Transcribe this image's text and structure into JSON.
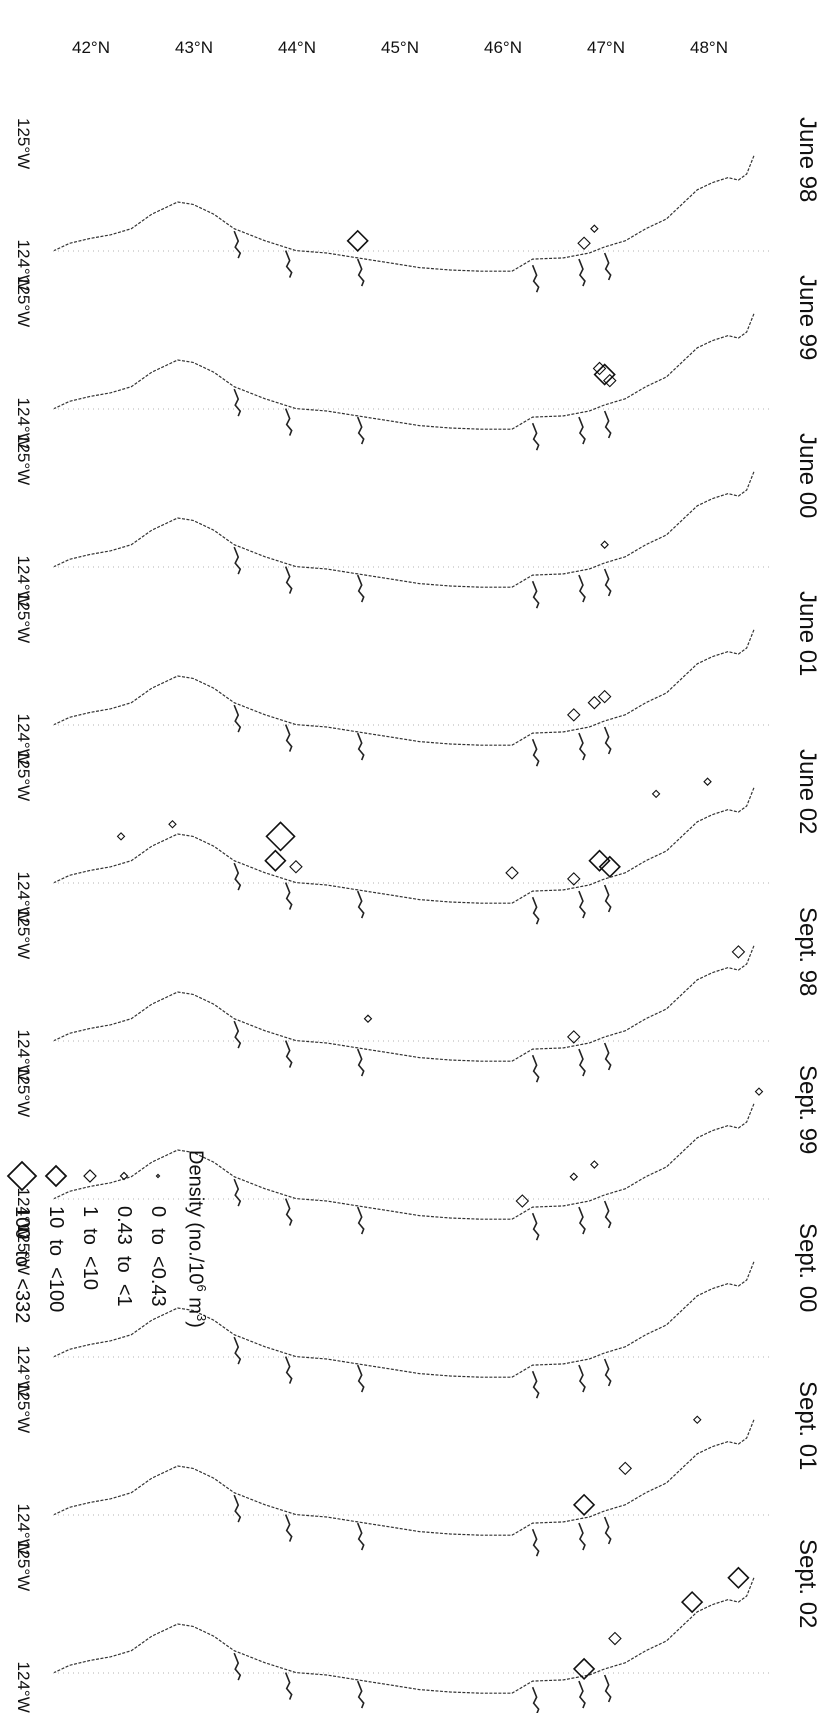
{
  "panels": [
    {
      "title": "June 98",
      "lon_left": "125°W",
      "lon_right": "124°W",
      "samples": [
        {
          "lat": 46.8,
          "lon": 124.18,
          "cls": 2
        },
        {
          "lat": 44.6,
          "lon": 124.2,
          "cls": 3
        },
        {
          "lat": 46.9,
          "lon": 124.3,
          "cls": 1
        }
      ]
    },
    {
      "title": "June 99",
      "lon_left": "125°W",
      "lon_right": "124°W",
      "samples": [
        {
          "lat": 47.0,
          "lon": 124.4,
          "cls": 3
        },
        {
          "lat": 46.95,
          "lon": 124.45,
          "cls": 2
        },
        {
          "lat": 47.05,
          "lon": 124.35,
          "cls": 2
        }
      ]
    },
    {
      "title": "June 00",
      "lon_left": "125°W",
      "lon_right": "124°W",
      "samples": [
        {
          "lat": 47.0,
          "lon": 124.3,
          "cls": 1
        }
      ]
    },
    {
      "title": "June 01",
      "lon_left": "125°W",
      "lon_right": "124°W",
      "samples": [
        {
          "lat": 47.0,
          "lon": 124.35,
          "cls": 2
        },
        {
          "lat": 46.9,
          "lon": 124.3,
          "cls": 2
        },
        {
          "lat": 46.7,
          "lon": 124.2,
          "cls": 2
        }
      ]
    },
    {
      "title": "June 02",
      "lon_left": "125°W",
      "lon_right": "124°W",
      "samples": [
        {
          "lat": 47.05,
          "lon": 124.25,
          "cls": 3
        },
        {
          "lat": 46.95,
          "lon": 124.3,
          "cls": 3
        },
        {
          "lat": 46.7,
          "lon": 124.15,
          "cls": 2
        },
        {
          "lat": 46.1,
          "lon": 124.2,
          "cls": 2
        },
        {
          "lat": 44.0,
          "lon": 124.25,
          "cls": 2
        },
        {
          "lat": 43.8,
          "lon": 124.3,
          "cls": 3
        },
        {
          "lat": 43.85,
          "lon": 124.5,
          "cls": 4
        },
        {
          "lat": 48.0,
          "lon": 124.95,
          "cls": 1
        },
        {
          "lat": 47.5,
          "lon": 124.85,
          "cls": 1
        },
        {
          "lat": 42.8,
          "lon": 124.6,
          "cls": 1
        },
        {
          "lat": 42.3,
          "lon": 124.5,
          "cls": 1
        }
      ]
    },
    {
      "title": "Sept. 98",
      "lon_left": "125°W",
      "lon_right": "124°W",
      "samples": [
        {
          "lat": 48.3,
          "lon": 124.85,
          "cls": 2
        },
        {
          "lat": 46.7,
          "lon": 124.15,
          "cls": 2
        },
        {
          "lat": 44.7,
          "lon": 124.3,
          "cls": 1
        }
      ]
    },
    {
      "title": "Sept. 99",
      "lon_left": "125°W",
      "lon_right": "124°W",
      "samples": [
        {
          "lat": 48.5,
          "lon": 125.0,
          "cls": 1
        },
        {
          "lat": 46.9,
          "lon": 124.4,
          "cls": 1
        },
        {
          "lat": 46.7,
          "lon": 124.3,
          "cls": 1
        },
        {
          "lat": 46.2,
          "lon": 124.1,
          "cls": 2
        }
      ]
    },
    {
      "title": "Sept. 00",
      "lon_left": "125°W",
      "lon_right": "124°W",
      "samples": []
    },
    {
      "title": "Sept. 01",
      "lon_left": "125°W",
      "lon_right": "124°W",
      "samples": [
        {
          "lat": 47.9,
          "lon": 124.9,
          "cls": 1
        },
        {
          "lat": 47.2,
          "lon": 124.5,
          "cls": 2
        },
        {
          "lat": 46.8,
          "lon": 124.2,
          "cls": 3
        }
      ]
    },
    {
      "title": "Sept. 02",
      "lon_left": "125°W",
      "lon_right": "124°W",
      "samples": [
        {
          "lat": 48.3,
          "lon": 124.9,
          "cls": 3
        },
        {
          "lat": 47.85,
          "lon": 124.7,
          "cls": 3
        },
        {
          "lat": 47.1,
          "lon": 124.4,
          "cls": 2
        },
        {
          "lat": 46.8,
          "lon": 124.15,
          "cls": 3
        }
      ]
    }
  ],
  "lat_labels": [
    {
      "lat": 48,
      "label": "48°N"
    },
    {
      "lat": 47,
      "label": "47°N"
    },
    {
      "lat": 46,
      "label": "46°N"
    },
    {
      "lat": 45,
      "label": "45°N"
    },
    {
      "lat": 44,
      "label": "44°N"
    },
    {
      "lat": 43,
      "label": "43°N"
    },
    {
      "lat": 42,
      "label": "42°N"
    }
  ],
  "legend": {
    "title_prefix": "Density (no./10",
    "title_exp1": "6",
    "title_mid": " m",
    "title_exp2": "3",
    "title_suffix": ")",
    "items": [
      {
        "cls": 0,
        "label": "0  to  <0.43"
      },
      {
        "cls": 1,
        "label": "0.43  to  <1"
      },
      {
        "cls": 2,
        "label": "1  to  <10"
      },
      {
        "cls": 3,
        "label": "10  to  <100"
      },
      {
        "cls": 4,
        "label": "100  to  <332"
      }
    ]
  },
  "colors": {
    "ink": "#111111",
    "coast": "#333333"
  }
}
